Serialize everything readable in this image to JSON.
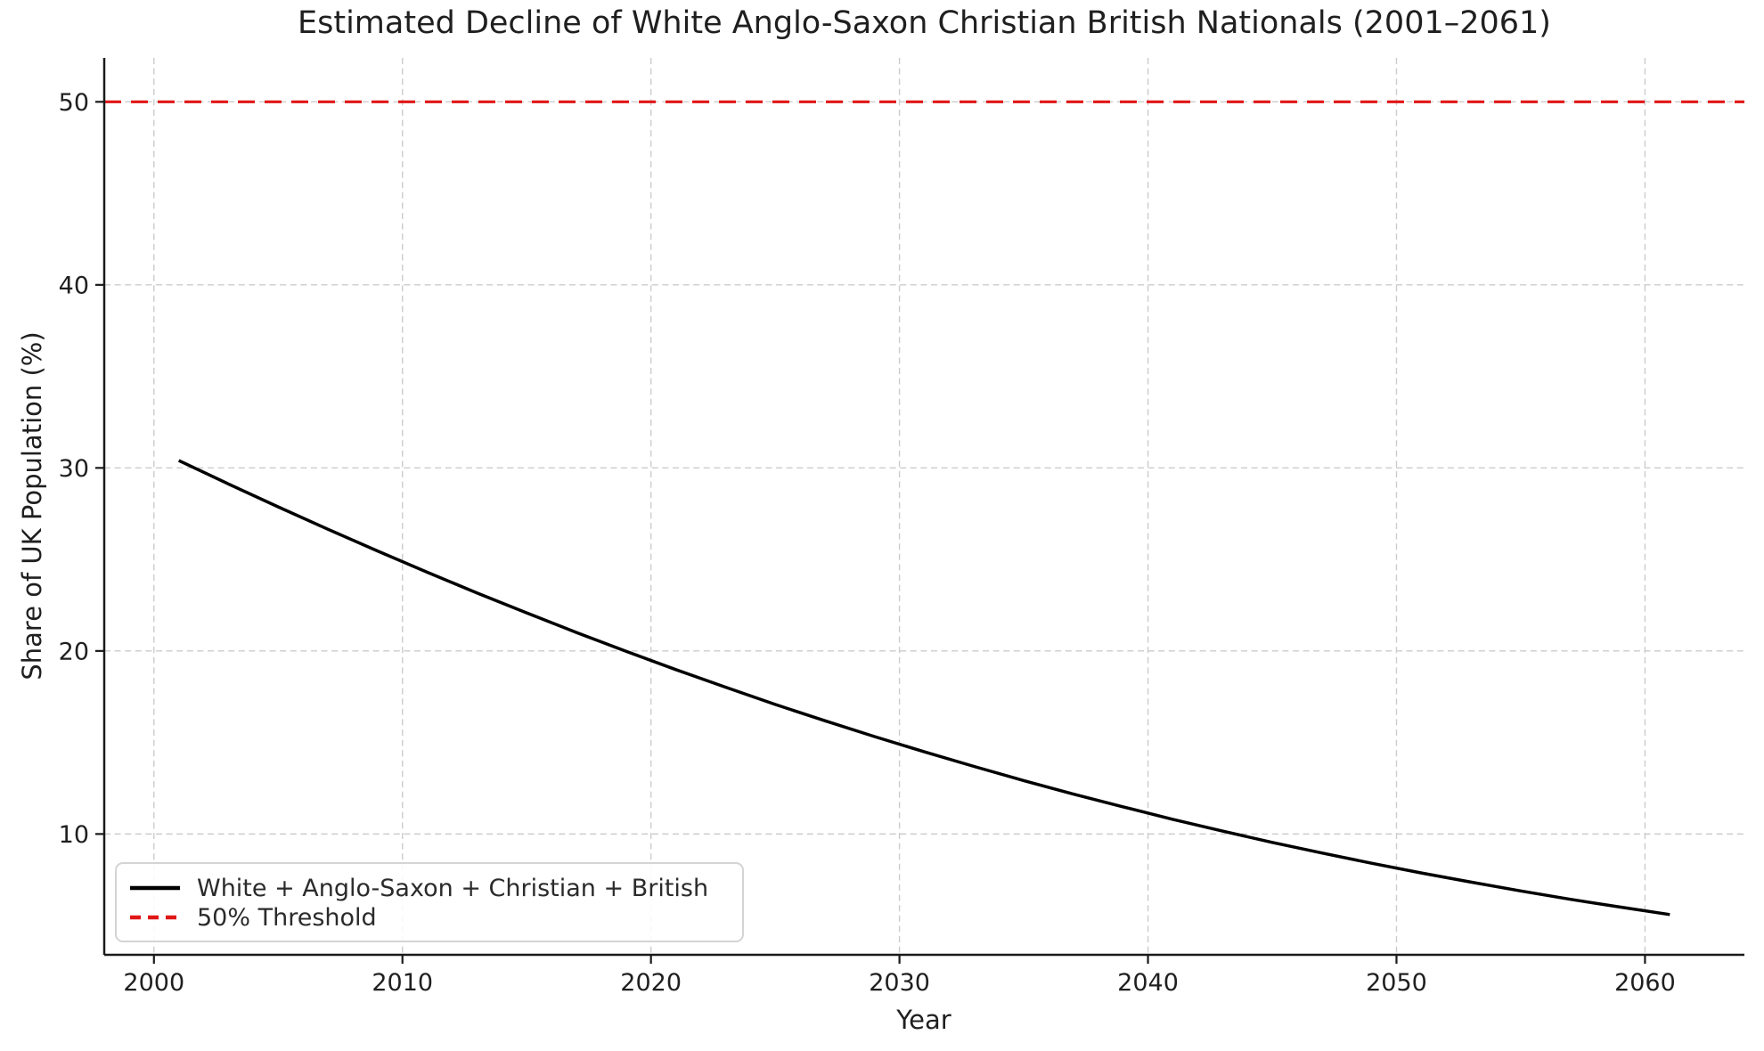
{
  "chart_data": {
    "type": "line",
    "title": "Estimated Decline of White Anglo-Saxon Christian British Nationals (2001–2061)",
    "xlabel": "Year",
    "ylabel": "Share of UK Population (%)",
    "xlim": [
      1998,
      2064
    ],
    "ylim": [
      3.4,
      52.4
    ],
    "xticks": [
      2000,
      2010,
      2020,
      2030,
      2040,
      2050,
      2060
    ],
    "yticks": [
      10,
      20,
      30,
      40,
      50
    ],
    "grid": true,
    "grid_style": "dashed",
    "legend_position": "lower left",
    "series": [
      {
        "name": "White + Anglo-Saxon + Christian + British",
        "color": "#000000",
        "style": "solid",
        "x": [
          2001,
          2003,
          2005,
          2007,
          2009,
          2011,
          2013,
          2015,
          2017,
          2019,
          2021,
          2023,
          2025,
          2027,
          2029,
          2031,
          2033,
          2035,
          2037,
          2039,
          2041,
          2043,
          2045,
          2047,
          2049,
          2051,
          2053,
          2055,
          2057,
          2059,
          2061
        ],
        "y": [
          30.4,
          29.12,
          27.87,
          26.65,
          25.46,
          24.3,
          23.17,
          22.08,
          21.01,
          19.98,
          18.98,
          18.02,
          17.08,
          16.19,
          15.32,
          14.49,
          13.69,
          12.92,
          12.18,
          11.48,
          10.8,
          10.16,
          9.54,
          8.96,
          8.4,
          7.87,
          7.37,
          6.89,
          6.43,
          6.01,
          5.6
        ]
      },
      {
        "name": "50% Threshold",
        "color": "#e01616",
        "style": "dashed",
        "threshold_y": 50,
        "span": "full-width"
      }
    ],
    "colors": {
      "grid": "#cccccc",
      "spine": "#1a1a1a",
      "tick": "#1a1a1a",
      "text": "#1f1f1f"
    }
  }
}
